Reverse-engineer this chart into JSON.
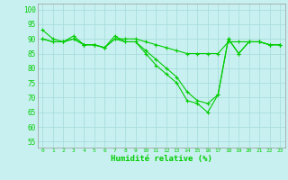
{
  "xlabel": "Humidité relative (%)",
  "background_color": "#c8f0f0",
  "grid_color": "#aadddd",
  "line_color": "#00cc00",
  "xlim": [
    -0.5,
    23.5
  ],
  "ylim": [
    53,
    102
  ],
  "yticks": [
    55,
    60,
    65,
    70,
    75,
    80,
    85,
    90,
    95,
    100
  ],
  "xticks": [
    0,
    1,
    2,
    3,
    4,
    5,
    6,
    7,
    8,
    9,
    10,
    11,
    12,
    13,
    14,
    15,
    16,
    17,
    18,
    19,
    20,
    21,
    22,
    23
  ],
  "series": [
    [
      93,
      90,
      89,
      91,
      88,
      88,
      87,
      91,
      89,
      89,
      85,
      81,
      78,
      75,
      69,
      68,
      65,
      71,
      90,
      85,
      89,
      89,
      88,
      88
    ],
    [
      90,
      89,
      89,
      90,
      88,
      88,
      87,
      90,
      89,
      89,
      86,
      83,
      80,
      77,
      72,
      69,
      68,
      71,
      90,
      85,
      89,
      89,
      88,
      88
    ],
    [
      90,
      89,
      89,
      90,
      88,
      88,
      87,
      90,
      90,
      90,
      89,
      88,
      87,
      86,
      85,
      85,
      85,
      85,
      89,
      89,
      89,
      89,
      88,
      88
    ]
  ]
}
